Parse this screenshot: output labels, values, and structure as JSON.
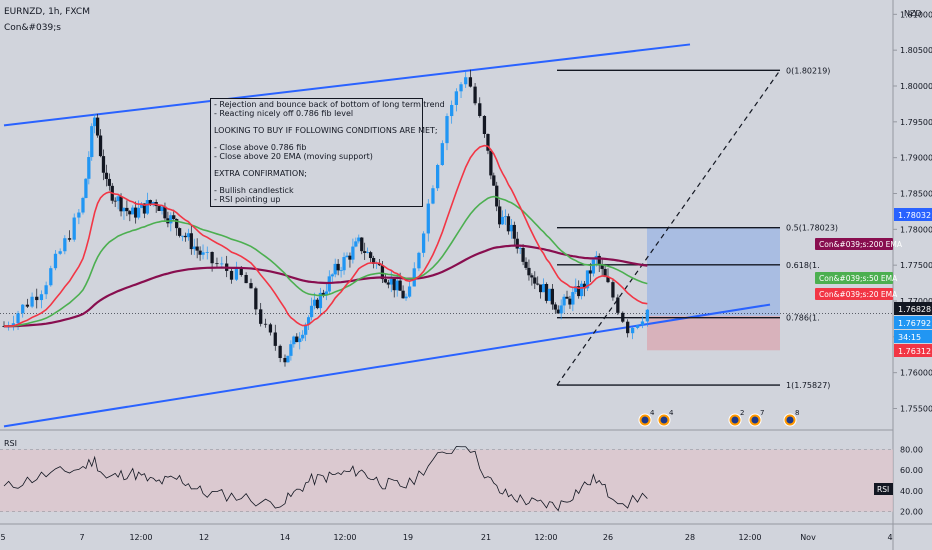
{
  "header": {
    "symbol": "EURNZD, 1h, FXCM",
    "indicator": "Con&#039;s"
  },
  "price_axis": {
    "currency": "NZD",
    "ticks": [
      "1.81000",
      "1.80500",
      "1.80000",
      "1.79500",
      "1.79000",
      "1.78500",
      "1.78000",
      "1.77500",
      "1.77000",
      "1.76500",
      "1.76000",
      "1.75500"
    ],
    "badges": [
      {
        "label": "1.78032",
        "color": "#2962ff",
        "value": 1.78032
      },
      {
        "label": "1.76828",
        "color": "#131722",
        "value": 1.76828
      },
      {
        "label": "1.76792",
        "color": "#2196f3",
        "value": 1.76792
      },
      {
        "label": "34:15",
        "color": "#2196f3",
        "value": 1.76725
      },
      {
        "label": "1.76312",
        "color": "#f23645",
        "value": 1.76312
      }
    ]
  },
  "time_axis": {
    "labels": [
      "5",
      "7",
      "12:00",
      "12",
      "14",
      "12:00",
      "19",
      "21",
      "12:00",
      "26",
      "28",
      "12:00",
      "Nov",
      "4"
    ]
  },
  "note_box": {
    "lines": [
      "- Rejection and bounce back of bottom of long term trend",
      "- Reacting nicely off 0.786 fib level",
      "",
      "LOOKING TO BUY IF FOLLOWING CONDITIONS ARE MET;",
      "",
      "- Close above 0.786 fib",
      "- Close above 20 EMA (moving support)",
      "",
      "EXTRA CONFIRMATION;",
      "",
      "- Bullish candlestick",
      "- RSI pointing up"
    ]
  },
  "fib_labels": [
    {
      "label": "0(1.80219)",
      "value": 1.80219
    },
    {
      "label": "0.5(1.78023)",
      "value": 1.78023
    },
    {
      "label": "0.618(1.",
      "value": 1.77505
    },
    {
      "label": "0.786(1.",
      "value": 1.76767
    },
    {
      "label": "1(1.75827)",
      "value": 1.75827
    }
  ],
  "ema_labels": [
    {
      "label": "Con&#039;s:200 EMA",
      "color": "#880e4f"
    },
    {
      "label": "Con&#039;s:50 EMA",
      "color": "#4caf50"
    },
    {
      "label": "Con&#039;s:20 EMA",
      "color": "#f23645"
    }
  ],
  "event_markers": [
    {
      "count": "4"
    },
    {
      "count": "4"
    },
    {
      "count": "2"
    },
    {
      "count": "7"
    },
    {
      "count": "8"
    }
  ],
  "rsi": {
    "title": "RSI",
    "badge": "RSI",
    "ticks": [
      "80.00",
      "60.00",
      "40.00",
      "20.00"
    ]
  },
  "colors": {
    "background": "#d1d4dc",
    "trendline": "#2962ff",
    "bull_candle": "#2196f3",
    "bear_candle": "#131722",
    "ema20": "#f23645",
    "ema50": "#4caf50",
    "ema200": "#880e4f",
    "profit_zone": "#9fb6e3",
    "loss_zone": "#d9a9b3"
  },
  "chart_data": {
    "type": "candlestick",
    "title": "EURNZD, 1h, FXCM",
    "ylabel": "NZD",
    "ylim": [
      1.752,
      1.812
    ],
    "key_prices": {
      "swing_high": 1.80219,
      "swing_low": 1.75827,
      "last": 1.76828
    },
    "channel": {
      "upper": [
        [
          5,
          1.7945
        ],
        [
          28,
          1.8058
        ]
      ],
      "lower": [
        [
          5,
          1.7525
        ],
        [
          30,
          1.7695
        ]
      ]
    },
    "price_path": [
      [
        5,
        1.7665
      ],
      [
        6,
        1.772
      ],
      [
        7,
        1.783
      ],
      [
        7.5,
        1.796
      ],
      [
        8,
        1.786
      ],
      [
        9,
        1.782
      ],
      [
        10,
        1.784
      ],
      [
        11,
        1.78
      ],
      [
        12,
        1.776
      ],
      [
        13,
        1.773
      ],
      [
        13.5,
        1.766
      ],
      [
        14,
        1.762
      ],
      [
        15,
        1.768
      ],
      [
        16,
        1.774
      ],
      [
        17,
        1.778
      ],
      [
        18,
        1.774
      ],
      [
        19,
        1.77
      ],
      [
        19.5,
        1.783
      ],
      [
        20,
        1.796
      ],
      [
        20.5,
        1.802
      ],
      [
        21,
        1.792
      ],
      [
        21.5,
        1.782
      ],
      [
        22,
        1.78
      ],
      [
        23,
        1.773
      ],
      [
        24,
        1.769
      ],
      [
        25,
        1.772
      ],
      [
        25.5,
        1.776
      ],
      [
        26,
        1.772
      ],
      [
        26.5,
        1.766
      ],
      [
        27,
        1.769
      ]
    ],
    "rsi_path": [
      [
        5,
        43
      ],
      [
        6,
        55
      ],
      [
        7,
        62
      ],
      [
        7.5,
        70
      ],
      [
        8,
        52
      ],
      [
        9,
        58
      ],
      [
        10,
        48
      ],
      [
        11,
        52
      ],
      [
        12,
        38
      ],
      [
        13,
        34
      ],
      [
        13.5,
        28
      ],
      [
        14,
        30
      ],
      [
        15,
        50
      ],
      [
        16,
        55
      ],
      [
        17,
        60
      ],
      [
        18,
        47
      ],
      [
        19,
        45
      ],
      [
        19.5,
        65
      ],
      [
        20,
        78
      ],
      [
        20.5,
        88
      ],
      [
        21,
        55
      ],
      [
        21.5,
        40
      ],
      [
        22,
        35
      ],
      [
        23,
        28
      ],
      [
        24,
        26
      ],
      [
        25,
        45
      ],
      [
        25.5,
        52
      ],
      [
        26,
        38
      ],
      [
        26.5,
        28
      ],
      [
        27,
        38
      ]
    ],
    "rsi_ylim": [
      10,
      95
    ]
  }
}
